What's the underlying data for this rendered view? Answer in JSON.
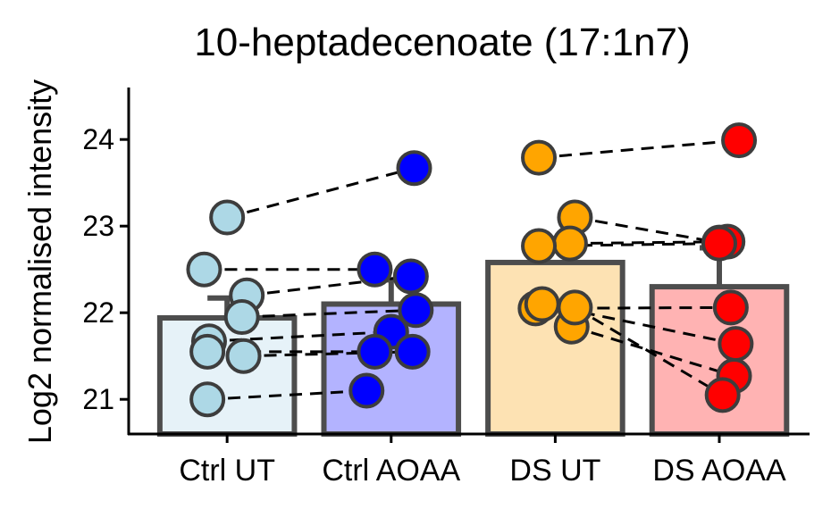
{
  "chart_data": {
    "type": "bar",
    "title": "10-heptadecenoate (17:1n7)",
    "xlabel": "",
    "ylabel": "Log2 normalised intensity",
    "ylim": [
      20.6,
      24.6
    ],
    "yticks": [
      21,
      22,
      23,
      24
    ],
    "grid": false,
    "legend": "none",
    "categories": [
      "Ctrl UT",
      "Ctrl AOAA",
      "DS UT",
      "DS AOAA"
    ],
    "bar_values": [
      21.94,
      22.1,
      22.58,
      22.3
    ],
    "error_upper": [
      22.17,
      22.38,
      22.58,
      22.75
    ],
    "fill_colors": [
      "#e6f2f8",
      "#b3b3ff",
      "#fde2b3",
      "#ffb3b3"
    ],
    "point_colors": [
      "#add8e6",
      "#0000ff",
      "#ffa500",
      "#ff0000"
    ],
    "point_offsets": [
      [
        0.0,
        -0.14,
        0.12,
        0.09,
        -0.11,
        -0.12,
        0.1,
        -0.12
      ],
      [
        0.14,
        -0.1,
        0.12,
        0.15,
        0.0,
        -0.1,
        0.13,
        -0.15
      ],
      [
        -0.1,
        0.12,
        0.09,
        -0.1,
        -0.12,
        -0.08,
        0.1,
        0.12
      ],
      [
        0.12,
        0.0,
        0.05,
        0.0,
        0.07,
        0.1,
        0.09,
        0.02
      ]
    ],
    "points": [
      [
        23.1,
        22.5,
        22.2,
        21.95,
        21.67,
        21.55,
        21.5,
        21.0
      ],
      [
        23.67,
        22.5,
        22.42,
        22.03,
        21.78,
        21.55,
        21.55,
        21.1
      ],
      [
        23.79,
        23.1,
        22.8,
        22.77,
        22.05,
        22.1,
        21.84,
        22.06
      ],
      [
        23.99,
        22.81,
        22.82,
        22.8,
        22.06,
        21.64,
        21.27,
        21.05
      ]
    ],
    "pairs": [
      [
        23.1,
        23.67
      ],
      [
        22.5,
        22.5
      ],
      [
        22.2,
        22.42
      ],
      [
        21.95,
        22.03
      ],
      [
        21.67,
        21.78
      ],
      [
        21.55,
        21.55
      ],
      [
        21.5,
        21.55
      ],
      [
        21.0,
        21.1
      ],
      [
        23.79,
        23.99
      ],
      [
        23.1,
        22.81
      ],
      [
        22.8,
        22.82
      ],
      [
        22.77,
        22.8
      ],
      [
        22.05,
        22.06
      ],
      [
        22.1,
        21.64
      ],
      [
        21.84,
        21.27
      ],
      [
        22.06,
        21.05
      ]
    ],
    "pair_groups": [
      [
        0,
        1
      ],
      [
        0,
        1
      ],
      [
        0,
        1
      ],
      [
        0,
        1
      ],
      [
        0,
        1
      ],
      [
        0,
        1
      ],
      [
        0,
        1
      ],
      [
        0,
        1
      ],
      [
        2,
        3
      ],
      [
        2,
        3
      ],
      [
        2,
        3
      ],
      [
        2,
        3
      ],
      [
        2,
        3
      ],
      [
        2,
        3
      ],
      [
        2,
        3
      ],
      [
        2,
        3
      ]
    ]
  }
}
